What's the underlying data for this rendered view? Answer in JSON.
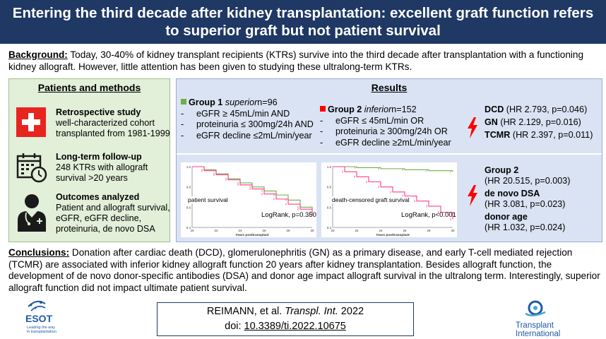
{
  "title": {
    "line1": "Entering the third decade after kidney transplantation: excellent graft function refers",
    "line2": "to superior graft but not patient survival"
  },
  "background": {
    "label": "Background:",
    "text": " Today, 30-40% of kidney transplant recipients (KTRs) survive into the third decade after transplantation with a functioning kidney allograft. However, little attention has been given to studying these ultralong-term KTRs."
  },
  "patients_methods": {
    "heading": "Patients and methods",
    "items": [
      {
        "icon": "swiss-flag-icon",
        "title": "Retrospective study",
        "text": "well-characterized cohort transplanted from 1981-1999"
      },
      {
        "icon": "calendar-clock-icon",
        "title": "Long-term follow-up",
        "text": "248 KTRs with allograft survival >20 years"
      },
      {
        "icon": "doctor-icon",
        "title": "Outcomes analyzed",
        "text": "Patient and allograft survival, eGFR, eGFR decline, proteinuria, de novo DSA"
      }
    ]
  },
  "results": {
    "heading": "Results",
    "group1": {
      "title": "Group 1",
      "qualifier": "superior",
      "n": "n=96",
      "color": "#70ad47",
      "criteria": [
        "eGFR ≥ 45mL/min AND",
        "proteinuria ≤ 300mg/24h AND",
        "eGFR decline ≤2mL/min/year"
      ]
    },
    "group2": {
      "title": "Group 2",
      "qualifier": "inferior",
      "n": "n=152",
      "color": "#ff0000",
      "criteria": [
        "eGFR ≤ 45mL/min OR",
        "proteinuria ≥ 300mg/24h OR",
        "eGFR decline ≥2mL/min/year"
      ]
    },
    "risk_function": [
      {
        "name": "DCD",
        "stat": "(HR 2.793, p=0.046)"
      },
      {
        "name": "GN",
        "stat": "(HR 2.129, p=0.016)"
      },
      {
        "name": "TCMR",
        "stat": "(HR 2.397, p=0.011)"
      }
    ],
    "risk_survival": [
      {
        "name": "Group 2",
        "stat": "(HR 20.515, p=0.003)"
      },
      {
        "name": "de novo DSA",
        "stat": "(HR 3.081, p=0.023)"
      },
      {
        "name": "donor age",
        "stat": "(HR 1.032, p=0.024)"
      }
    ],
    "charts": [
      {
        "label": "patient survival",
        "logrank": "LogRank, p=0.350",
        "xlabel": "Years posttransplant"
      },
      {
        "label": "death-censored graft survival",
        "logrank": "LogRank, p<0.001",
        "xlabel": "Years posttransplant"
      }
    ]
  },
  "chart_data": [
    {
      "type": "line",
      "title": "patient survival",
      "xlabel": "Years posttransplant",
      "ylabel": "",
      "xlim": [
        20,
        30
      ],
      "ylim": [
        0.4,
        1.0
      ],
      "x_ticks": [
        "20",
        "22",
        "24",
        "26",
        "28",
        "30"
      ],
      "y_ticks": [
        "1.0",
        "0.8",
        "0.6",
        "0.4"
      ],
      "series": [
        {
          "color": "#70ad47",
          "x": [
            20,
            21,
            22,
            23,
            24,
            25,
            26,
            27,
            28,
            29,
            30
          ],
          "y": [
            1.0,
            0.97,
            0.93,
            0.88,
            0.84,
            0.8,
            0.76,
            0.72,
            0.67,
            0.6,
            0.55
          ]
        },
        {
          "color": "#ff3b8d",
          "x": [
            20,
            21,
            22,
            23,
            24,
            25,
            26,
            27,
            28,
            29,
            30
          ],
          "y": [
            1.0,
            0.96,
            0.92,
            0.87,
            0.82,
            0.78,
            0.73,
            0.68,
            0.63,
            0.58,
            0.52
          ]
        }
      ],
      "annotation": "LogRank, p=0.350"
    },
    {
      "type": "line",
      "title": "death-censored graft survival",
      "xlabel": "Years posttransplant",
      "ylabel": "",
      "xlim": [
        20,
        30
      ],
      "ylim": [
        0.4,
        1.0
      ],
      "x_ticks": [
        "20",
        "22",
        "24",
        "26",
        "28",
        "30"
      ],
      "y_ticks": [
        "1.0",
        "0.8",
        "0.6",
        "0.4"
      ],
      "series": [
        {
          "color": "#70ad47",
          "x": [
            20,
            22,
            24,
            26,
            28,
            30
          ],
          "y": [
            1.0,
            0.99,
            0.98,
            0.97,
            0.96,
            0.95
          ]
        },
        {
          "color": "#ff3b8d",
          "x": [
            20,
            21,
            22,
            23,
            24,
            25,
            26,
            27,
            28,
            29,
            30
          ],
          "y": [
            1.0,
            0.95,
            0.9,
            0.85,
            0.8,
            0.75,
            0.71,
            0.66,
            0.61,
            0.55,
            0.48
          ]
        }
      ],
      "annotation": "LogRank, p<0.001"
    }
  ],
  "conclusions": {
    "label": "Conclusions:",
    "text": " Donation after cardiac death (DCD), glomerulonephritis (GN) as a primary disease, and early T-cell mediated rejection (TCMR) are associated with inferior kidney allograft function 20 years after kidney transplantation. Besides allograft function, the development of de novo donor-specific antibodies (DSA) and donor age impact allograft survival in the ultralong term. Interestingly, superior allograft function did not impact ultimate patient survival."
  },
  "citation": {
    "authors": "REIMANN, et al. ",
    "journal": "Transpl. Int.",
    "year": " 2022",
    "doi_label": "doi: ",
    "doi": "10.3389/ti.2022.10675"
  },
  "logos": {
    "esot_name": "ESOT",
    "esot_tagline1": "Leading the way",
    "esot_tagline2": "in transplantation",
    "ti_line1": "Transplant",
    "ti_line2": "International"
  }
}
